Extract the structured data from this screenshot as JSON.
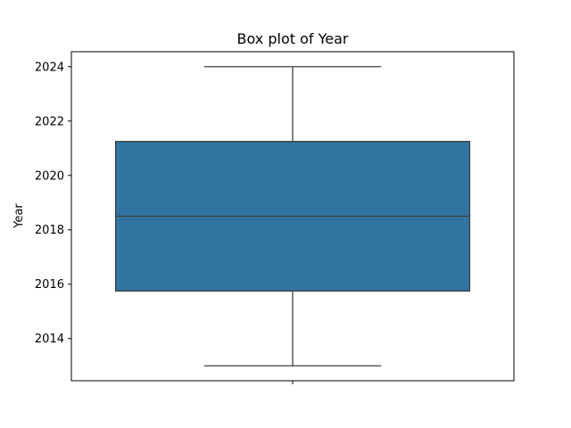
{
  "chart_data": {
    "type": "box",
    "title": "Box plot of Year",
    "xlabel": "",
    "ylabel": "Year",
    "ylim": [
      2012.45,
      2024.55
    ],
    "yticks": [
      2014,
      2016,
      2018,
      2020,
      2022,
      2024
    ],
    "grid": false,
    "box": {
      "whisker_low": 2013,
      "q1": 2015.75,
      "median": 2018.5,
      "q3": 2021.25,
      "whisker_high": 2024
    },
    "colors": {
      "box_fill": "#3274a1",
      "line": "#3f3f3f",
      "axis": "#000000"
    }
  }
}
